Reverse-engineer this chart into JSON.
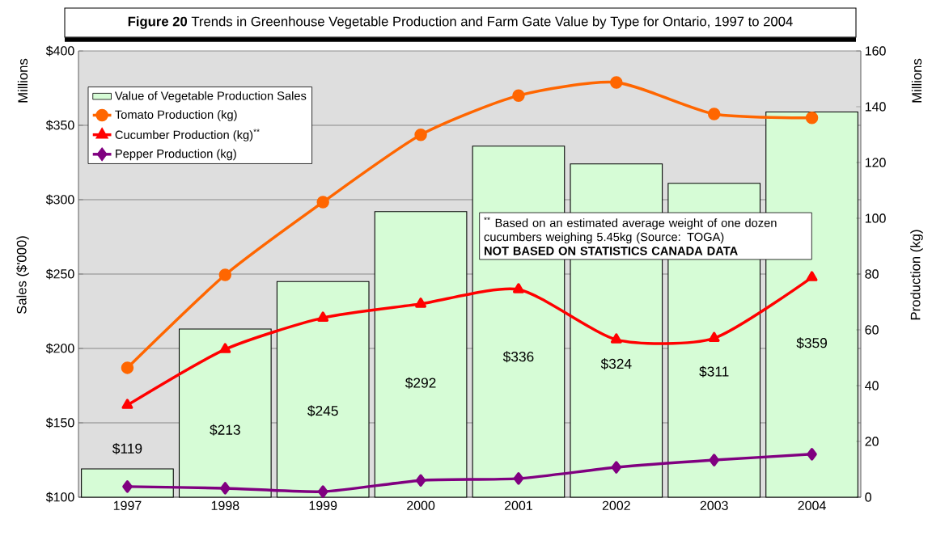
{
  "chart_data": {
    "type": "bar",
    "title": "**Figure 20** Trends in Greenhouse Vegetable Production and Farm Gate Value by Type for Ontario, 1997 to 2004",
    "ylabel": "Sales ($'000)",
    "y2label": "Production (kg)",
    "annotations": [
      "$^{**}$ Based on an estimated average weight of one dozen cucumbers weighing 5.45kg (Source: TOGA)",
      "NOT BASED ON STATISTICS CANADA DATA",
      "Millions",
      "Millions"
    ],
    "categories": [
      "1997",
      "1998",
      "1999",
      "2000",
      "2001",
      "2002",
      "2003",
      "2004"
    ],
    "ylim": [
      100,
      400
    ],
    "yticks": [
      {
        "value": 100,
        "label": "$100"
      },
      {
        "value": 150,
        "label": "$150"
      },
      {
        "value": 200,
        "label": "$200"
      },
      {
        "value": 250,
        "label": "$250"
      },
      {
        "value": 300,
        "label": "$300"
      },
      {
        "value": 350,
        "label": "$350"
      },
      {
        "value": 400,
        "label": "$400"
      }
    ],
    "y2lim": [
      0,
      160
    ],
    "y2ticks": [
      0,
      20,
      40,
      60,
      80,
      100,
      120,
      140,
      160
    ],
    "grid": "y",
    "legend": "top left",
    "series": [
      {
        "name": "Value of Vegetable Production Sales",
        "color": "#d6fcd6",
        "values": [
          119,
          213,
          245,
          292,
          336,
          324,
          311,
          359
        ],
        "value_labels": [
          "$119",
          "$213",
          "$245",
          "$292",
          "$336",
          "$324",
          "$311",
          "$359"
        ]
      },
      {
        "name": "Tomato Production (kg)",
        "type": "line",
        "axis": "y2",
        "marker": "circle",
        "color": "#ff6600",
        "values": [
          46.4,
          79.7,
          105.8,
          129.9,
          144,
          148.7,
          137.4,
          136
        ]
      },
      {
        "name": "Cucumber Production (kg)$^{**}$",
        "type": "line",
        "axis": "y2",
        "marker": "triangle",
        "color": "#ff0000",
        "values": [
          33,
          53,
          64.3,
          69.3,
          74.5,
          56.5,
          57,
          78.8
        ]
      },
      {
        "name": "Pepper Production (kg)",
        "type": "line",
        "axis": "y2",
        "marker": "diamond",
        "color": "#800080",
        "values": [
          3.8,
          3.2,
          2,
          6,
          6.7,
          10.7,
          13.3,
          15.4
        ]
      }
    ]
  }
}
